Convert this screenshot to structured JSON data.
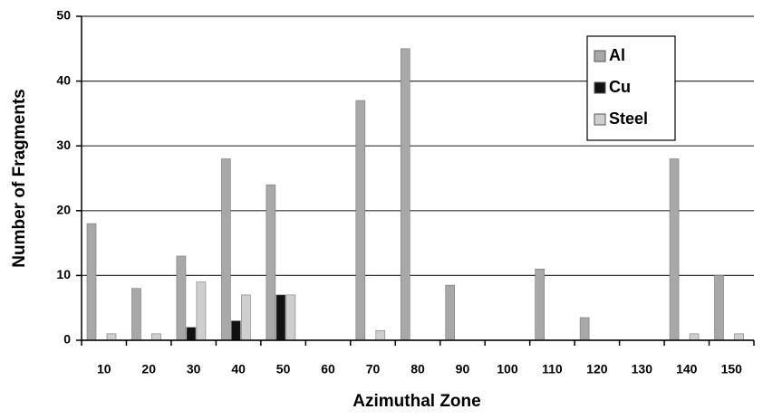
{
  "chart_data": {
    "type": "bar",
    "x_label": "Azimuthal Zone",
    "y_label": "Number of Fragments",
    "categories": [
      "10",
      "20",
      "30",
      "40",
      "50",
      "60",
      "70",
      "80",
      "90",
      "100",
      "110",
      "120",
      "130",
      "140",
      "150"
    ],
    "series": [
      {
        "name": "Al",
        "color": "#a8a8a8",
        "values": [
          18,
          8,
          13,
          28,
          24,
          0,
          37,
          45,
          8.5,
          0,
          11,
          3.5,
          0,
          28,
          10
        ]
      },
      {
        "name": "Cu",
        "color": "#111111",
        "values": [
          0,
          0,
          2,
          3,
          7,
          0,
          0,
          0,
          0,
          0,
          0,
          0,
          0,
          0,
          0
        ]
      },
      {
        "name": "Steel",
        "color": "#cfcfcf",
        "values": [
          1,
          1,
          9,
          7,
          7,
          0,
          1.5,
          0,
          0,
          0,
          0,
          0,
          0,
          1,
          1
        ]
      }
    ],
    "ylim": [
      0,
      50
    ],
    "yticks": [
      0,
      10,
      20,
      30,
      40,
      50
    ],
    "grid": true,
    "legend": "upper right"
  }
}
